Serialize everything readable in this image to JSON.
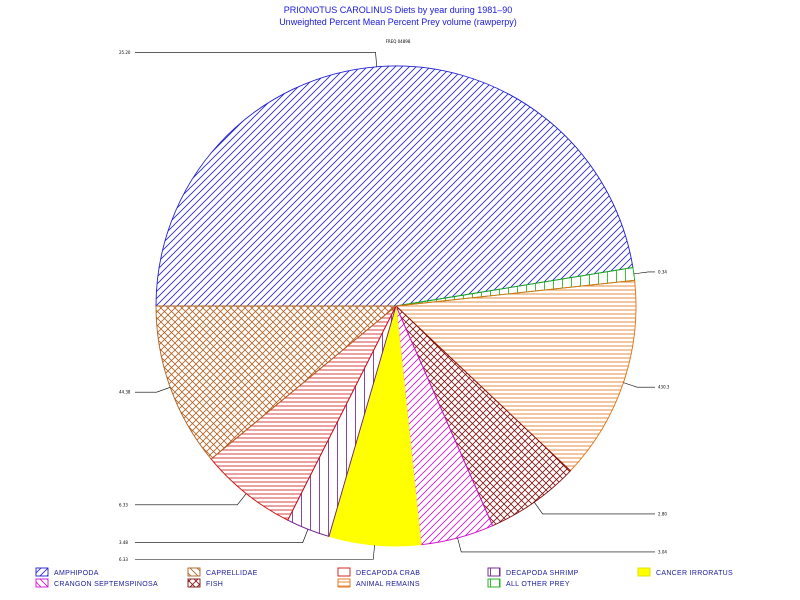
{
  "chart_data": {
    "type": "pie",
    "title": "PRIONOTUS CAROLINUS Diets by year during 1981–90",
    "subtitle": "Unweighted Percent Mean Percent Prey  volume (rawperpy)",
    "top_label": "FREQ 04898",
    "slices": [
      {
        "name": "AMPHIPODA",
        "value": 50.0,
        "label": "25.20",
        "color": "#2020d0",
        "pattern": "diag-right"
      },
      {
        "name": "ALL OTHER PREY",
        "value": 0.9,
        "label": "0.34",
        "color": "#10b010",
        "pattern": "vertical"
      },
      {
        "name": "ANIMAL REMAINS",
        "value": 14.5,
        "label": "430.3",
        "color": "#e07010",
        "pattern": "horizontal"
      },
      {
        "name": "FISH",
        "value": 6.7,
        "label": "2.80",
        "color": "#801010",
        "pattern": "crosshatch"
      },
      {
        "name": "CRANGON SEPTEMSPINOSA",
        "value": 5.2,
        "label": "3.04",
        "color": "#d010d0",
        "pattern": "diag-right"
      },
      {
        "name": "CANCER IRRORATUS",
        "value": 6.5,
        "label": "6.33",
        "color": "#ffff00",
        "pattern": "solid"
      },
      {
        "name": "DECAPODA SHRIMP",
        "value": 3.1,
        "label": "3.48",
        "color": "#6a1a8a",
        "pattern": "vertical"
      },
      {
        "name": "DECAPODA CRAB",
        "value": 6.9,
        "label": "6.33",
        "color": "#d01010",
        "pattern": "horizontal"
      },
      {
        "name": "CAPRELLIDAE",
        "value": 11.6,
        "label": "44.38",
        "color": "#b06020",
        "pattern": "crosshatch"
      }
    ],
    "legend": [
      {
        "name": "AMPHIPODA",
        "color": "#2020d0",
        "pattern": "diag-right"
      },
      {
        "name": "CRANGON SEPTEMSPINOSA",
        "color": "#d010d0",
        "pattern": "diag-left"
      },
      {
        "name": "CAPRELLIDAE",
        "color": "#b06020",
        "pattern": "diag-left"
      },
      {
        "name": "FISH",
        "color": "#801010",
        "pattern": "crosshatch"
      },
      {
        "name": "DECAPODA CRAB",
        "color": "#d01010",
        "pattern": "solid-white"
      },
      {
        "name": "ANIMAL REMAINS",
        "color": "#e07010",
        "pattern": "horizontal"
      },
      {
        "name": "DECAPODA SHRIMP",
        "color": "#6a1a8a",
        "pattern": "vertical"
      },
      {
        "name": "ALL OTHER PREY",
        "color": "#10b010",
        "pattern": "vertical"
      },
      {
        "name": "CANCER IRRORATUS",
        "color": "#ffff00",
        "pattern": "solid"
      }
    ],
    "legend_placement": "bottom"
  }
}
